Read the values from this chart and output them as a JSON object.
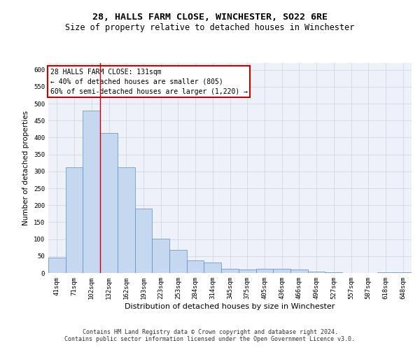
{
  "title": "28, HALLS FARM CLOSE, WINCHESTER, SO22 6RE",
  "subtitle": "Size of property relative to detached houses in Winchester",
  "xlabel": "Distribution of detached houses by size in Winchester",
  "ylabel": "Number of detached properties",
  "categories": [
    "41sqm",
    "71sqm",
    "102sqm",
    "132sqm",
    "162sqm",
    "193sqm",
    "223sqm",
    "253sqm",
    "284sqm",
    "314sqm",
    "345sqm",
    "375sqm",
    "405sqm",
    "436sqm",
    "466sqm",
    "496sqm",
    "527sqm",
    "557sqm",
    "587sqm",
    "618sqm",
    "648sqm"
  ],
  "values": [
    45,
    312,
    480,
    413,
    312,
    190,
    102,
    68,
    37,
    30,
    13,
    10,
    12,
    12,
    10,
    5,
    3,
    1,
    0,
    3,
    3
  ],
  "bar_color": "#c5d8f0",
  "bar_edge_color": "#5a8fc2",
  "grid_color": "#d0d8e8",
  "background_color": "#eef2f8",
  "annotation_box_text": "28 HALLS FARM CLOSE: 131sqm\n← 40% of detached houses are smaller (805)\n60% of semi-detached houses are larger (1,220) →",
  "annotation_box_color": "#ffffff",
  "annotation_box_edge_color": "#cc0000",
  "red_line_x": 2.5,
  "ylim": [
    0,
    620
  ],
  "yticks": [
    0,
    50,
    100,
    150,
    200,
    250,
    300,
    350,
    400,
    450,
    500,
    550,
    600
  ],
  "footer_line1": "Contains HM Land Registry data © Crown copyright and database right 2024.",
  "footer_line2": "Contains public sector information licensed under the Open Government Licence v3.0.",
  "title_fontsize": 9.5,
  "subtitle_fontsize": 8.5,
  "xlabel_fontsize": 8,
  "ylabel_fontsize": 7.5,
  "tick_fontsize": 6.5,
  "annotation_fontsize": 7,
  "footer_fontsize": 6
}
